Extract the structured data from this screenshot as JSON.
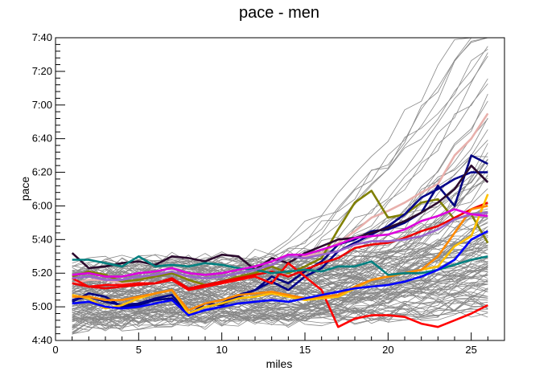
{
  "chart_data": {
    "type": "line",
    "title": "pace - men",
    "xlabel": "miles",
    "ylabel": "pace",
    "xlim": [
      0,
      27
    ],
    "ylim": [
      280,
      460
    ],
    "x_ticks": [
      0,
      5,
      10,
      15,
      20,
      25
    ],
    "x_tick_labels": [
      "0",
      "5",
      "10",
      "15",
      "20",
      "25"
    ],
    "y_ticks": [
      280,
      300,
      320,
      340,
      360,
      380,
      400,
      420,
      440,
      460
    ],
    "y_tick_labels": [
      "4:40",
      "5:00",
      "5:20",
      "5:40",
      "6:00",
      "6:20",
      "6:40",
      "7:00",
      "7:20",
      "7:40"
    ],
    "background_color": "#888888",
    "highlighted_series": [
      {
        "color": "#e8b0ac",
        "values": [
          314,
          316,
          316,
          314,
          316,
          318,
          321,
          316,
          312,
          314,
          316,
          318,
          325,
          330,
          330,
          332,
          338,
          345,
          353,
          357,
          362,
          368,
          373,
          390,
          400,
          415
        ]
      },
      {
        "color": "#808000",
        "values": [
          318,
          321,
          319,
          315,
          316,
          318,
          320,
          316,
          313,
          315,
          318,
          320,
          324,
          320,
          324,
          329,
          346,
          362,
          369,
          353,
          355,
          362,
          364,
          352,
          355,
          338
        ]
      },
      {
        "color": "#000080",
        "values": [
          303,
          308,
          306,
          300,
          301,
          304,
          305,
          295,
          302,
          301,
          306,
          310,
          318,
          314,
          321,
          327,
          337,
          340,
          345,
          346,
          350,
          356,
          372,
          360,
          390,
          385
        ]
      },
      {
        "color": "#00008b",
        "values": [
          304,
          306,
          303,
          301,
          302,
          305,
          307,
          296,
          300,
          302,
          307,
          310,
          315,
          310,
          318,
          323,
          333,
          338,
          343,
          348,
          355,
          365,
          370,
          376,
          380,
          380
        ]
      },
      {
        "color": "#2b0a2e",
        "values": [
          332,
          323,
          324,
          326,
          327,
          325,
          330,
          329,
          327,
          331,
          330,
          322,
          329,
          326,
          332,
          336,
          340,
          341,
          344,
          347,
          351,
          356,
          362,
          370,
          384,
          374
        ]
      },
      {
        "color": "#ff0000",
        "values": [
          317,
          312,
          313,
          313,
          314,
          314,
          316,
          310,
          312,
          314,
          316,
          318,
          314,
          326,
          318,
          310,
          288,
          293,
          295,
          295,
          294,
          290,
          288,
          292,
          296,
          301
        ]
      },
      {
        "color": "#ee0000",
        "values": [
          314,
          312,
          311,
          312,
          313,
          314,
          317,
          311,
          313,
          315,
          317,
          319,
          321,
          318,
          322,
          326,
          329,
          335,
          337,
          338,
          341,
          345,
          348,
          353,
          358,
          362
        ]
      },
      {
        "color": "#ffc000",
        "values": [
          307,
          305,
          299,
          301,
          305,
          308,
          310,
          296,
          300,
          302,
          305,
          306,
          308,
          306,
          304,
          305,
          306,
          311,
          316,
          318,
          320,
          322,
          324,
          336,
          342,
          367
        ]
      },
      {
        "color": "#ff8a00",
        "values": [
          306,
          306,
          304,
          304,
          306,
          308,
          310,
          298,
          302,
          304,
          307,
          308,
          309,
          307,
          305,
          306,
          307,
          312,
          316,
          318,
          320,
          322,
          330,
          344,
          358,
          360
        ]
      },
      {
        "color": "#008080",
        "values": [
          328,
          328,
          326,
          324,
          330,
          324,
          325,
          324,
          326,
          325,
          323,
          322,
          320,
          321,
          322,
          321,
          324,
          324,
          327,
          319,
          320,
          320,
          322,
          325,
          328,
          330
        ]
      },
      {
        "color": "#9966cc",
        "values": [
          317,
          318,
          316,
          316,
          318,
          319,
          321,
          318,
          317,
          318,
          320,
          322,
          325,
          330,
          329,
          331,
          333,
          337,
          339,
          339,
          340,
          342,
          346,
          352,
          355,
          356
        ]
      },
      {
        "color": "#dd00dd",
        "values": [
          319,
          320,
          318,
          318,
          320,
          321,
          323,
          320,
          319,
          320,
          322,
          324,
          327,
          331,
          331,
          334,
          337,
          341,
          342,
          343,
          346,
          351,
          354,
          358,
          355,
          354
        ]
      },
      {
        "color": "#0000ff",
        "values": [
          302,
          303,
          300,
          299,
          300,
          302,
          304,
          295,
          298,
          300,
          302,
          303,
          304,
          303,
          305,
          307,
          309,
          311,
          312,
          313,
          315,
          318,
          322,
          328,
          340,
          345
        ]
      }
    ]
  }
}
